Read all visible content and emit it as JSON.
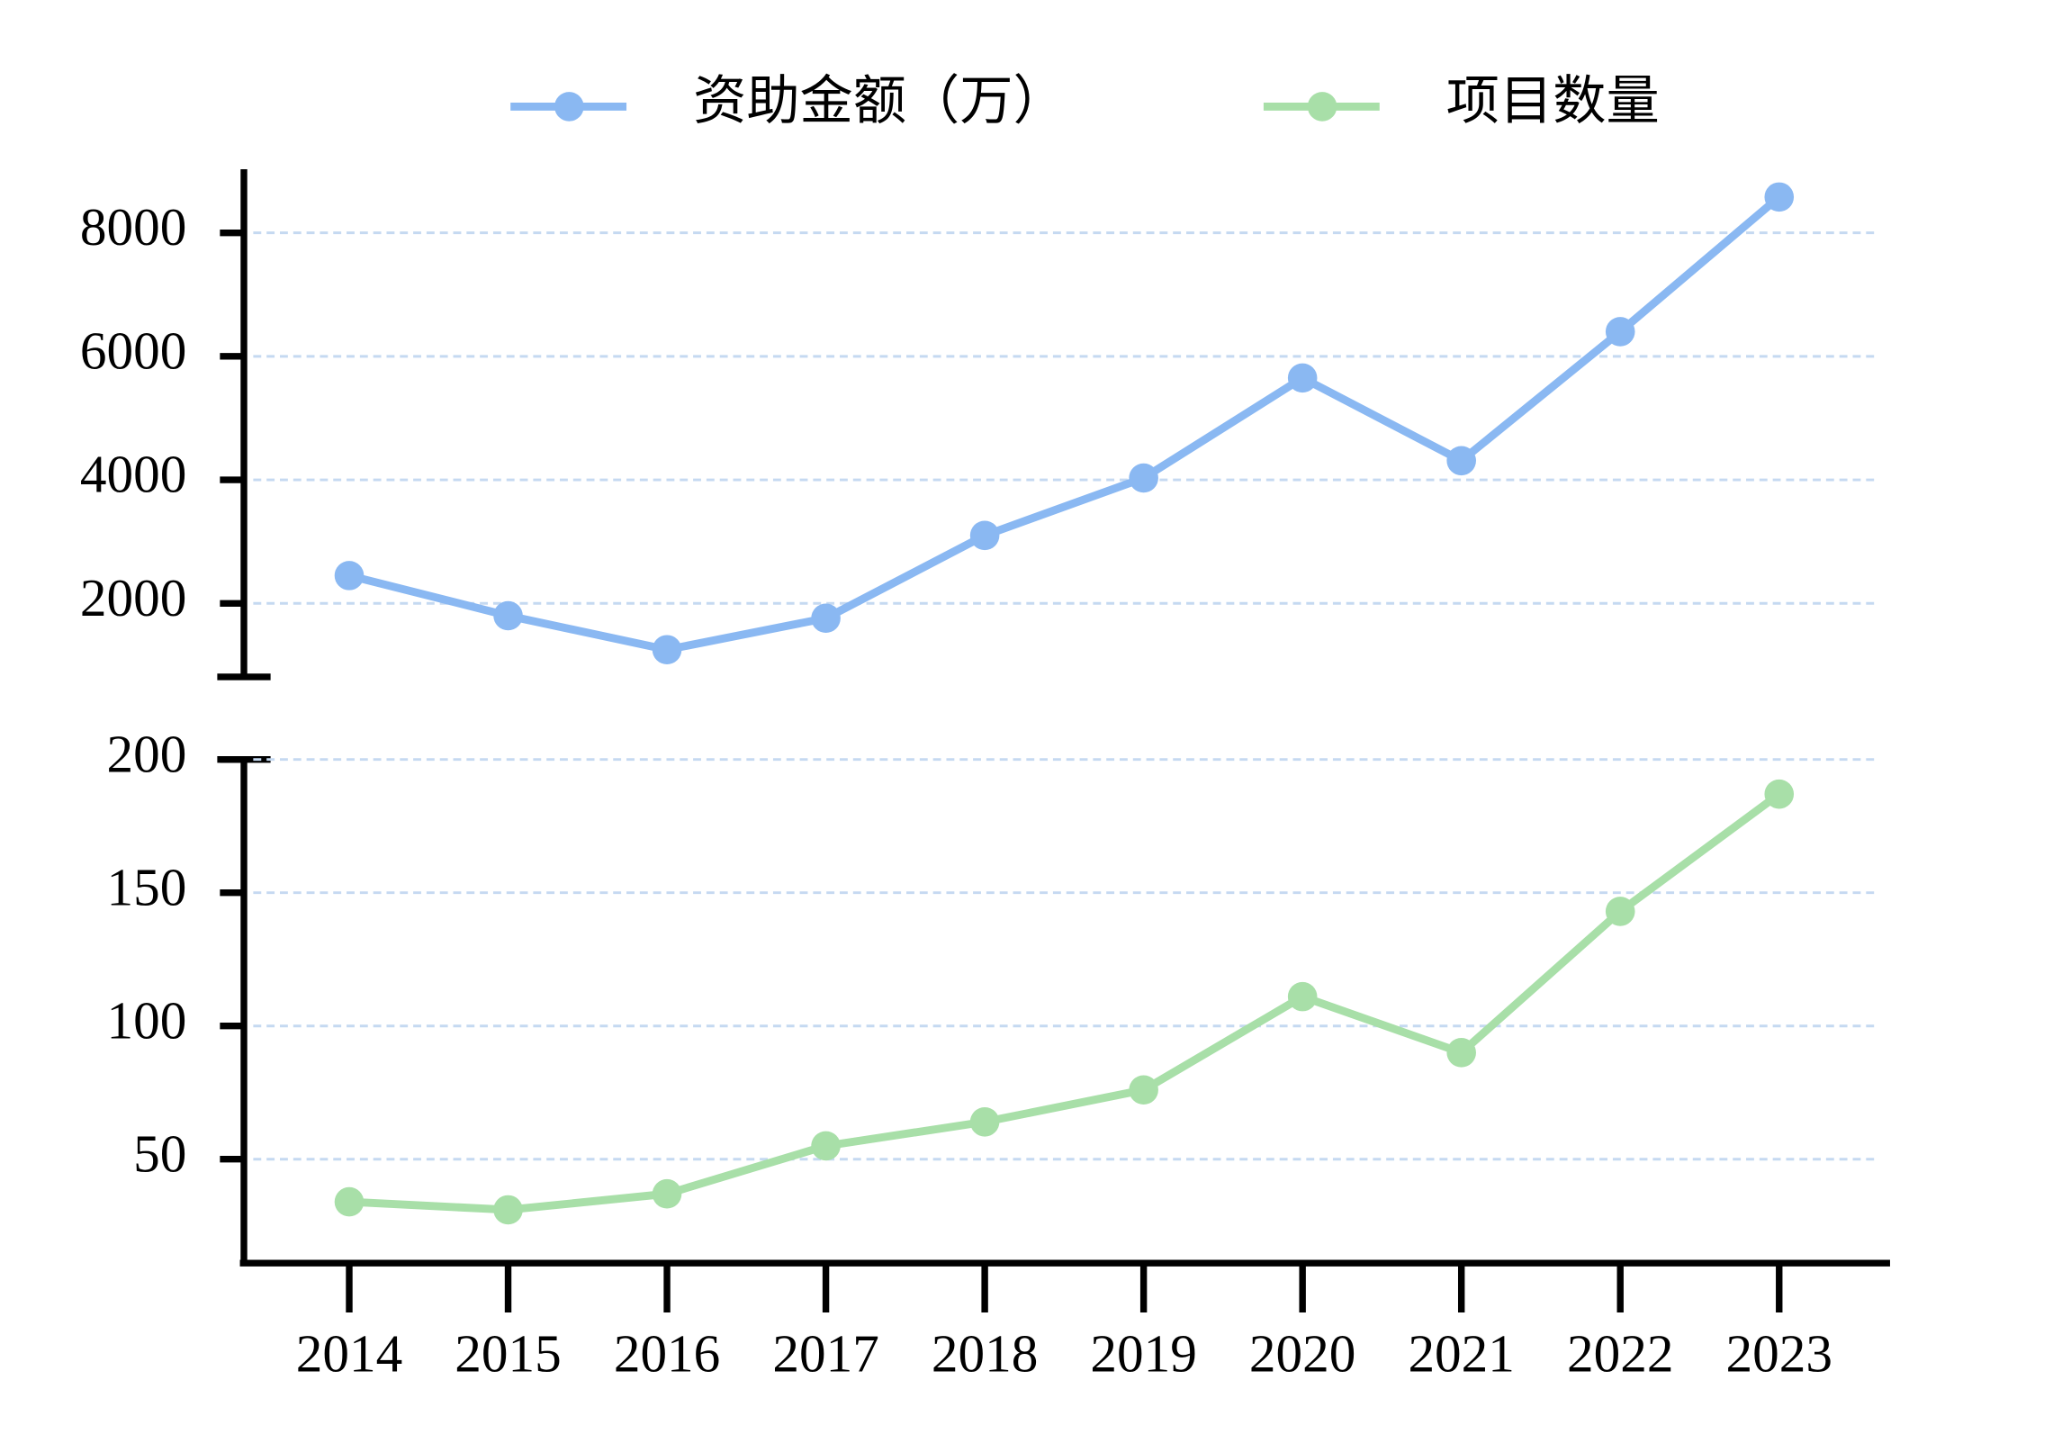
{
  "chart_data": {
    "type": "line",
    "categories": [
      "2014",
      "2015",
      "2016",
      "2017",
      "2018",
      "2019",
      "2020",
      "2021",
      "2022",
      "2023"
    ],
    "series": [
      {
        "name": "资助金额（万）",
        "color": "#8ab8f2",
        "values": [
          2450,
          1800,
          1250,
          1760,
          3100,
          4030,
          5650,
          4310,
          6400,
          8580
        ]
      },
      {
        "name": "项目数量",
        "color": "#a8dfa8",
        "axis": "y2",
        "values": [
          34,
          31,
          37,
          55,
          64,
          76,
          111,
          90,
          143,
          187
        ]
      }
    ],
    "ylim": [
      810,
      9030
    ],
    "yticks": [
      2000,
      4000,
      6000,
      8000
    ],
    "y2lim": [
      11,
      200
    ],
    "y2ticks": [
      50,
      100,
      150,
      200
    ],
    "grid": true,
    "legend": "top"
  }
}
